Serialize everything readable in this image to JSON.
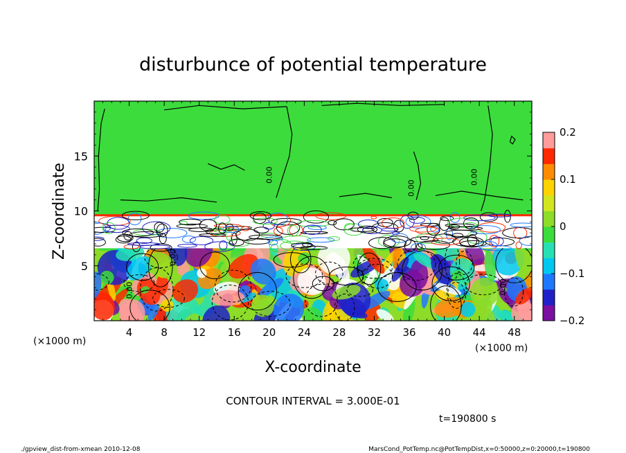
{
  "chart_data": {
    "type": "heatmap",
    "title": "disturbunce of potential temperature",
    "xlabel": "X-coordinate",
    "ylabel": "Z-coordinate",
    "x_unit_left": "(×1000 m)",
    "x_unit_right": "(×1000 m)",
    "xlim": [
      0,
      50
    ],
    "ylim": [
      0,
      20
    ],
    "xticks": [
      4,
      8,
      12,
      16,
      20,
      24,
      28,
      32,
      36,
      40,
      44,
      48
    ],
    "yticks": [
      5,
      10,
      15
    ],
    "colorbar": {
      "min": -0.2,
      "max": 0.2,
      "ticks": [
        0.2,
        0.1,
        0,
        -0.1,
        -0.2
      ],
      "tick_labels": [
        "0.2",
        "0.1",
        "0",
        "−0.1",
        "−0.2"
      ],
      "colors": [
        "#7a0fa0",
        "#2020c8",
        "#1e78ff",
        "#00c8f0",
        "#26e0b4",
        "#3cdc3c",
        "#8cdc28",
        "#d2e61e",
        "#ffd200",
        "#ff8c00",
        "#ff2800",
        "#ff9b9b"
      ]
    },
    "contour_interval_text": "CONTOUR INTERVAL = 3.000E-01",
    "time_text": "t=190800 s",
    "contour_labels": [
      "0.00",
      "0.00",
      "0.00",
      "0.00",
      "0.00",
      "0.00"
    ]
  },
  "footer": {
    "left": "./gpview_dist-from-xmean  2010-12-08",
    "right": "MarsCond_PotTemp.nc@PotTempDist,x=0:50000,z=0:20000,t=190800"
  }
}
